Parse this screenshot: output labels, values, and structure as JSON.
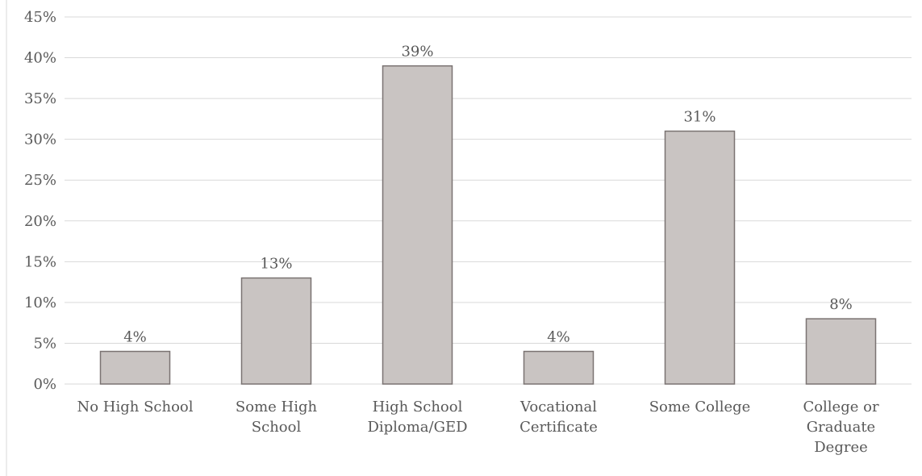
{
  "chart_data": {
    "type": "bar",
    "categories": [
      [
        "No High School"
      ],
      [
        "Some High",
        "School"
      ],
      [
        "High School",
        "Diploma/GED"
      ],
      [
        "Vocational",
        "Certificate"
      ],
      [
        "Some College"
      ],
      [
        "College or",
        "Graduate",
        "Degree"
      ]
    ],
    "values": [
      4,
      13,
      39,
      4,
      31,
      8
    ],
    "data_labels": [
      "4%",
      "13%",
      "39%",
      "4%",
      "31%",
      "8%"
    ],
    "ylim": [
      0,
      45
    ],
    "y_ticks": [
      0,
      5,
      10,
      15,
      20,
      25,
      30,
      35,
      40,
      45
    ],
    "y_tick_labels": [
      "0%",
      "5%",
      "10%",
      "15%",
      "20%",
      "25%",
      "30%",
      "35%",
      "40%",
      "45%"
    ],
    "grid": true,
    "legend": "none",
    "colors": {
      "bar_fill": "#c9c4c2",
      "bar_stroke": "#7a7372",
      "grid": "#d9d9d9",
      "text": "#595959"
    }
  }
}
